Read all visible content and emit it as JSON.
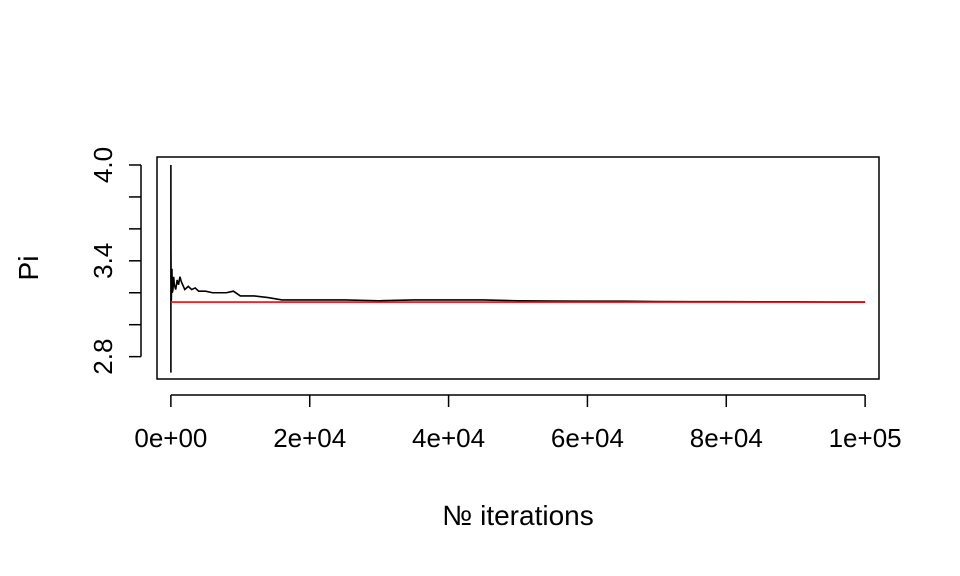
{
  "chart_data": {
    "type": "line",
    "title": "",
    "xlabel": "№ iterations",
    "ylabel": "Pi",
    "xlim": [
      -2000,
      102000
    ],
    "ylim": [
      2.66,
      4.05
    ],
    "x_ticks": [
      0,
      20000,
      40000,
      60000,
      80000,
      100000
    ],
    "x_tick_labels": [
      "0e+00",
      "2e+04",
      "4e+04",
      "6e+04",
      "8e+04",
      "1e+05"
    ],
    "y_ticks": [
      2.8,
      3.0,
      3.2,
      3.4,
      3.6,
      3.8,
      4.0
    ],
    "y_tick_labels": [
      "2.8",
      "",
      "",
      "3.4",
      "",
      "",
      "4.0"
    ],
    "grid": false,
    "legend": "none",
    "series": [
      {
        "color": "#000000",
        "x": [
          1,
          2,
          4,
          10,
          30,
          60,
          100,
          150,
          200,
          300,
          400,
          500,
          700,
          900,
          1100,
          1300,
          1500,
          2000,
          2500,
          3000,
          3500,
          4000,
          5000,
          6000,
          7000,
          8000,
          9000,
          10000,
          12000,
          14000,
          16000,
          18000,
          20000,
          25000,
          30000,
          35000,
          40000,
          45000,
          50000,
          55000,
          60000,
          65000,
          70000,
          75000,
          80000,
          85000,
          90000,
          95000,
          100000
        ],
        "y": [
          4.0,
          2.7,
          3.6,
          3.5,
          3.3,
          3.15,
          3.25,
          3.35,
          3.2,
          3.22,
          3.3,
          3.25,
          3.22,
          3.28,
          3.25,
          3.3,
          3.27,
          3.22,
          3.24,
          3.22,
          3.23,
          3.21,
          3.21,
          3.2,
          3.2,
          3.2,
          3.21,
          3.18,
          3.18,
          3.17,
          3.155,
          3.155,
          3.155,
          3.155,
          3.15,
          3.155,
          3.155,
          3.155,
          3.15,
          3.148,
          3.147,
          3.147,
          3.145,
          3.144,
          3.144,
          3.143,
          3.143,
          3.142,
          3.142
        ]
      },
      {
        "color": "#ff0000",
        "x": [
          0,
          100000
        ],
        "y": [
          3.14159,
          3.14159
        ]
      }
    ]
  }
}
